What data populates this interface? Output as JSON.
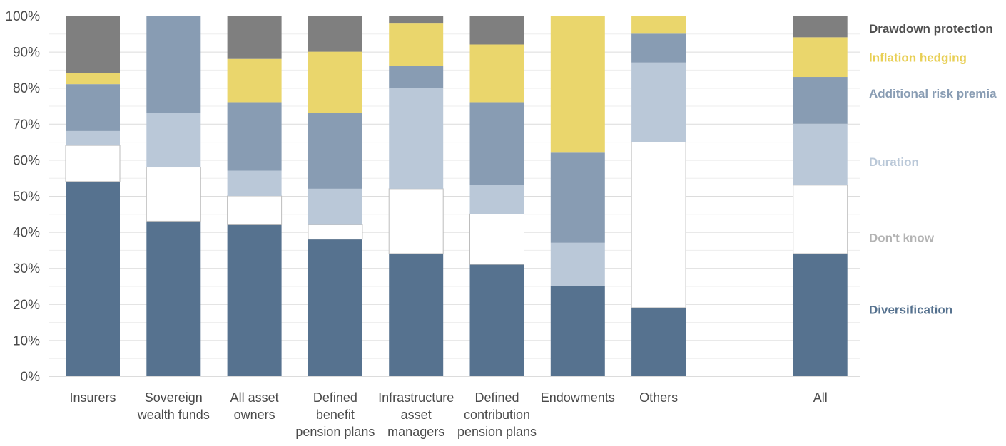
{
  "chart_data": {
    "type": "bar",
    "stacked": true,
    "title": "",
    "xlabel": "",
    "ylabel": "",
    "ylim": [
      0,
      100
    ],
    "y_ticks": [
      "0%",
      "10%",
      "20%",
      "30%",
      "40%",
      "50%",
      "60%",
      "70%",
      "80%",
      "90%",
      "100%"
    ],
    "grid": true,
    "legend_position": "right",
    "categories": [
      [
        "Insurers"
      ],
      [
        "Sovereign",
        "wealth funds"
      ],
      [
        "All asset",
        "owners"
      ],
      [
        "Defined",
        "benefit",
        "pension plans"
      ],
      [
        "Infrastructure",
        "asset",
        "managers"
      ],
      [
        "Defined",
        "contribution",
        "pension plans"
      ],
      [
        "Endowments"
      ],
      [
        "Others"
      ],
      [
        "All"
      ]
    ],
    "gap_before_last": true,
    "series": [
      {
        "name": "Diversification",
        "color": "#56728f",
        "legend_color": "#56728f",
        "values": [
          54,
          43,
          42,
          38,
          34,
          31,
          25,
          19,
          34
        ]
      },
      {
        "name": "Don't know",
        "color": "#ffffff",
        "legend_color": "#b3b3b3",
        "outlined": true,
        "values": [
          10,
          15,
          8,
          4,
          18,
          14,
          0,
          46,
          19
        ]
      },
      {
        "name": "Duration",
        "color": "#bac8d8",
        "legend_color": "#bac8d8",
        "values": [
          4,
          15,
          7,
          10,
          28,
          8,
          12,
          22,
          17
        ]
      },
      {
        "name": "Additional risk premia",
        "color": "#889cb3",
        "legend_color": "#889cb3",
        "values": [
          13,
          27,
          19,
          21,
          6,
          23,
          25,
          8,
          13
        ]
      },
      {
        "name": "Inflation hedging",
        "color": "#ead66c",
        "legend_color": "#e8cf55",
        "values": [
          3,
          0,
          12,
          17,
          12,
          16,
          38,
          5,
          11
        ]
      },
      {
        "name": "Drawdown protection",
        "color": "#7f7f7f",
        "legend_color": "#4d4d4d",
        "values": [
          16,
          0,
          12,
          10,
          2,
          8,
          0,
          0,
          6
        ]
      }
    ],
    "legend_order": [
      "Drawdown protection",
      "Inflation hedging",
      "Additional risk premia",
      "Duration",
      "Don't know",
      "Diversification"
    ],
    "legend_levels": [
      100,
      92,
      82,
      63,
      42,
      22
    ]
  }
}
